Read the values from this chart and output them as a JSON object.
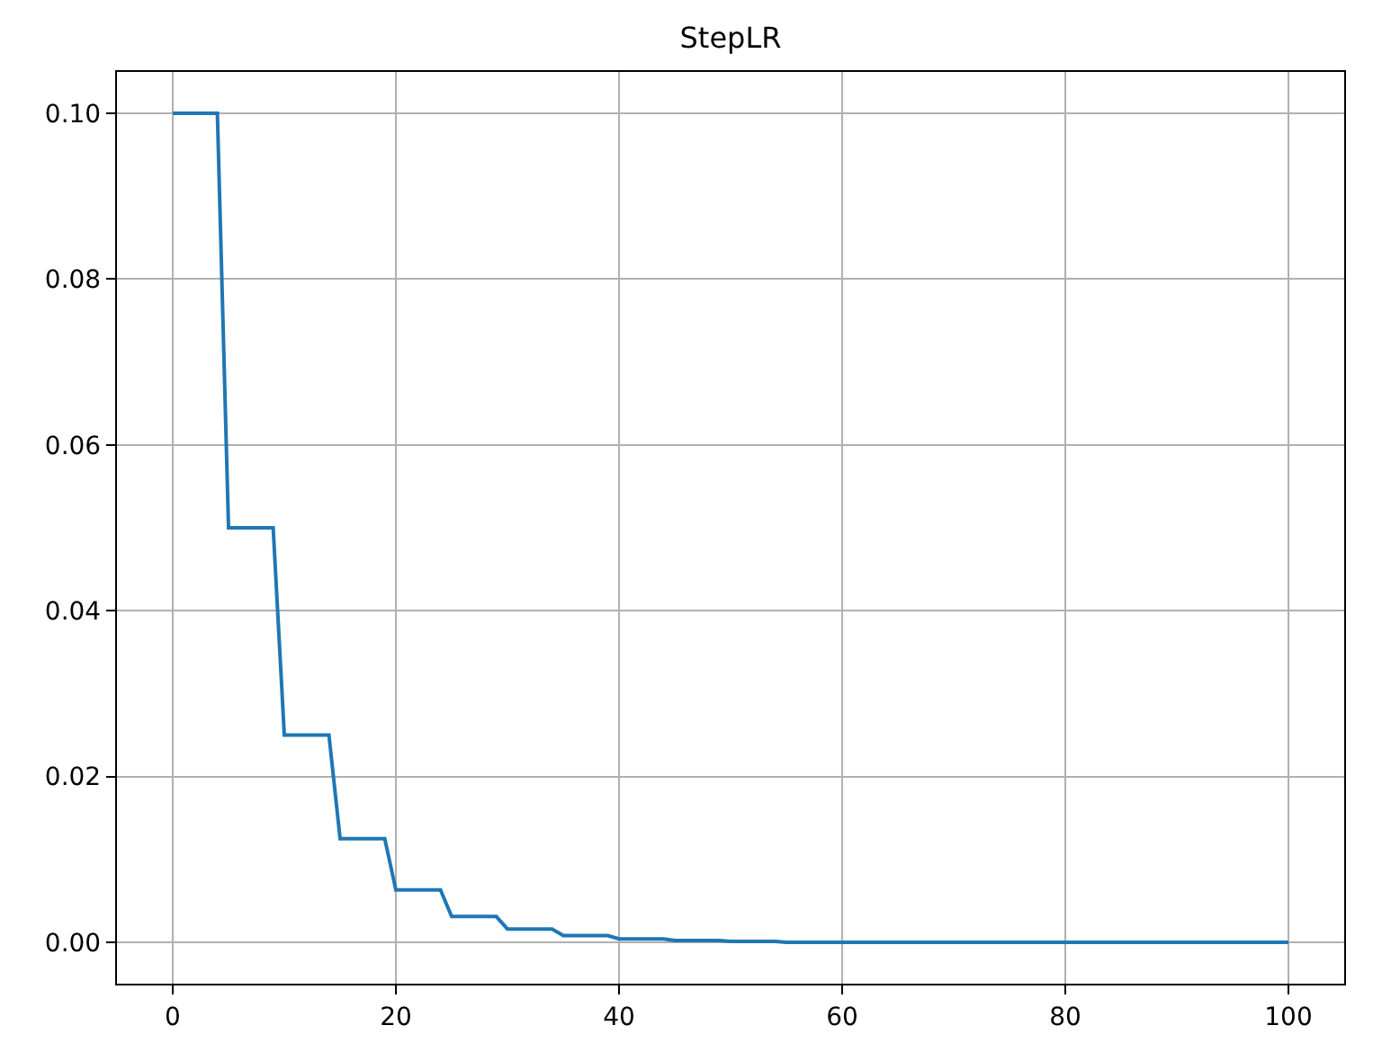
{
  "chart_data": {
    "type": "line",
    "title": "StepLR",
    "x": [
      0,
      4,
      5,
      9,
      10,
      14,
      15,
      19,
      20,
      24,
      25,
      29,
      30,
      34,
      35,
      39,
      40,
      44,
      45,
      49,
      50,
      54,
      55,
      100
    ],
    "series": [
      {
        "color": "#1f77b4",
        "values": [
          0.1,
          0.1,
          0.05,
          0.05,
          0.025,
          0.025,
          0.0125,
          0.0125,
          0.0063,
          0.0063,
          0.0031,
          0.0031,
          0.0016,
          0.0016,
          0.0008,
          0.0008,
          0.0004,
          0.0004,
          0.0002,
          0.0002,
          0.0001,
          0.0001,
          0,
          0
        ]
      }
    ],
    "xlim": [
      -5,
      105
    ],
    "ylim": [
      -0.005,
      0.105
    ],
    "xticks": [
      0,
      20,
      40,
      60,
      80,
      100
    ],
    "yticks": [
      {
        "value": 0,
        "label": "0.00"
      },
      {
        "value": 0.02,
        "label": "0.02"
      },
      {
        "value": 0.04,
        "label": "0.04"
      },
      {
        "value": 0.06,
        "label": "0.06"
      },
      {
        "value": 0.08,
        "label": "0.08"
      },
      {
        "value": 0.1,
        "label": "0.10"
      }
    ],
    "grid": true
  }
}
